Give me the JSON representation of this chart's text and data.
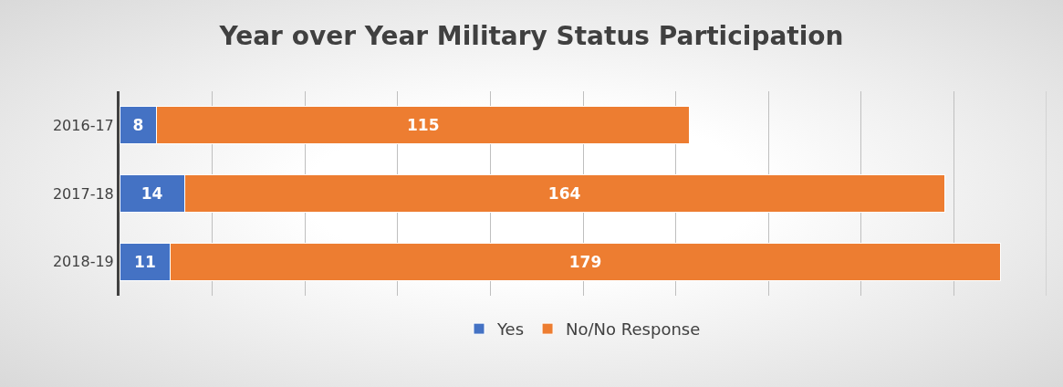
{
  "chart_data": {
    "type": "bar",
    "title": "Year over Year Military Status Participation",
    "orientation": "horizontal",
    "stacked": true,
    "categories": [
      "2016-17",
      "2017-18",
      "2018-19"
    ],
    "series": [
      {
        "name": "Yes",
        "color": "#4472c4",
        "values": [
          8,
          14,
          11
        ]
      },
      {
        "name": "No/No Response",
        "color": "#ed7d31",
        "values": [
          115,
          164,
          179
        ]
      }
    ],
    "xlim": [
      0,
      200
    ],
    "xticks": [
      {
        "value": 0,
        "label": null
      },
      {
        "value": 20,
        "label": null
      },
      {
        "value": 40,
        "label": null
      },
      {
        "value": 60,
        "label": null
      },
      {
        "value": 80,
        "label": null
      },
      {
        "value": 100,
        "label": null
      },
      {
        "value": 120,
        "label": null
      },
      {
        "value": 140,
        "label": null
      },
      {
        "value": 160,
        "label": null
      },
      {
        "value": 180,
        "label": null
      },
      {
        "value": 200,
        "label": null
      }
    ],
    "tick_labels": "y",
    "grid": "x",
    "legend": "bottom",
    "data_labels": true
  }
}
